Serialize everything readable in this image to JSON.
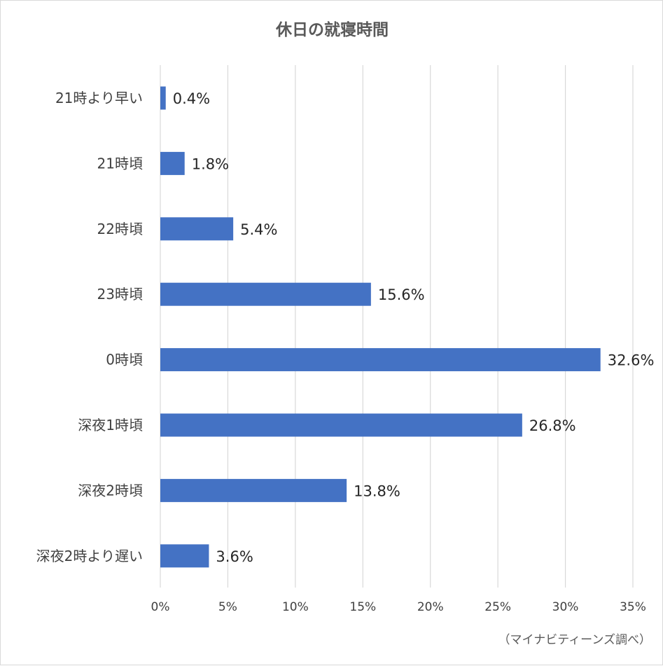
{
  "chart_data": {
    "type": "bar",
    "orientation": "horizontal",
    "title": "休日の就寝時間",
    "categories": [
      "21時より早い",
      "21時頃",
      "22時頃",
      "23時頃",
      "0時頃",
      "深夜1時頃",
      "深夜2時頃",
      "深夜2時より遅い"
    ],
    "values": [
      0.4,
      1.8,
      5.4,
      15.6,
      32.6,
      26.8,
      13.8,
      3.6
    ],
    "data_labels": [
      "0.4%",
      "1.8%",
      "5.4%",
      "15.6%",
      "32.6%",
      "26.8%",
      "13.8%",
      "3.6%"
    ],
    "xlim": [
      0,
      35
    ],
    "x_ticks": [
      "0%",
      "5%",
      "10%",
      "15%",
      "20%",
      "25%",
      "30%",
      "35%"
    ],
    "grid": "vertical",
    "bar_color": "#4472c4",
    "grid_color": "#d9d9d9",
    "legend": "none"
  },
  "source_note": "（マイナビティーンズ調べ）"
}
